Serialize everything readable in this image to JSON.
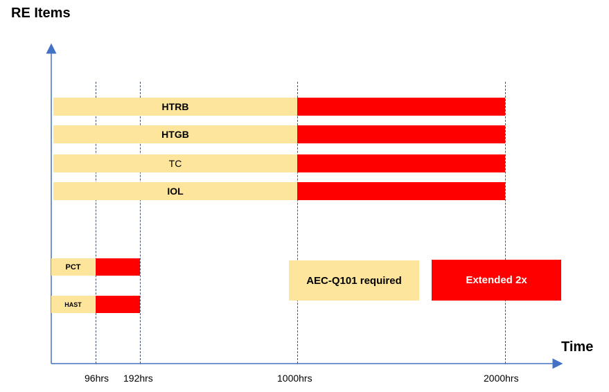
{
  "title": "RE Items",
  "x_axis_label": "Time",
  "ticks": [
    "96hrs",
    "192hrs",
    "1000hrs",
    "2000hrs"
  ],
  "rows": [
    {
      "label": "HTRB"
    },
    {
      "label": "HTGB"
    },
    {
      "label": "TC"
    },
    {
      "label": "IOL"
    },
    {
      "label": "PCT"
    },
    {
      "label": "HAST"
    }
  ],
  "legend": {
    "required": "AEC-Q101 required",
    "extended": "Extended 2x"
  },
  "colors": {
    "required": "#fde69c",
    "extended": "#ff0000",
    "axis": "#4472c4"
  }
}
